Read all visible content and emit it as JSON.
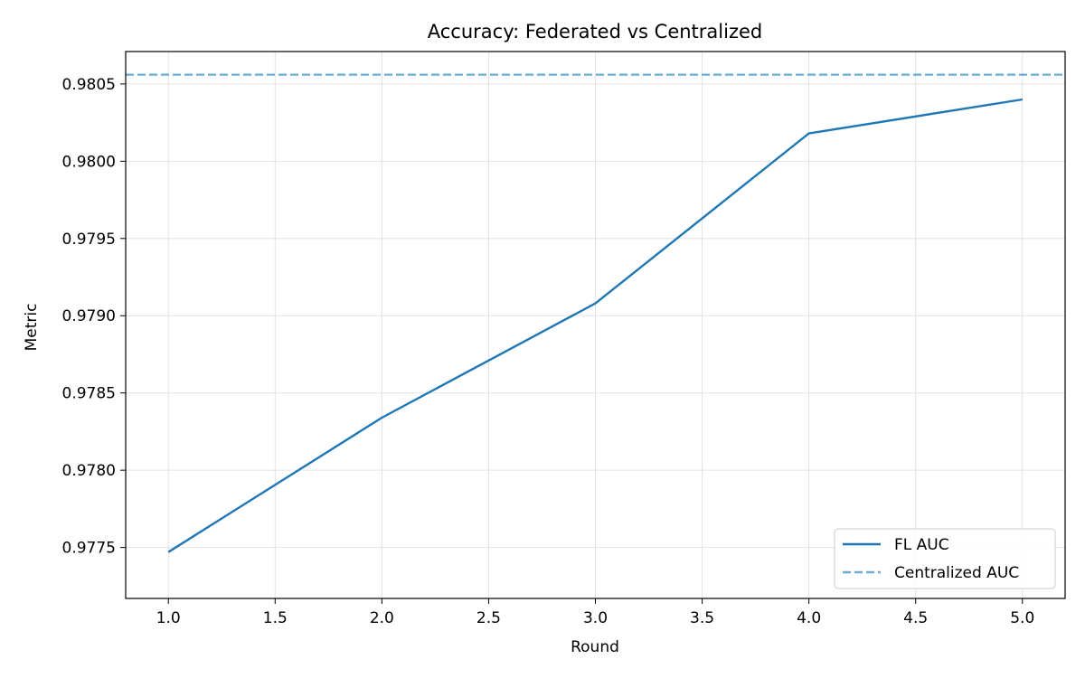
{
  "chart_data": {
    "type": "line",
    "title": "Accuracy: Federated vs Centralized",
    "xlabel": "Round",
    "ylabel": "Metric",
    "xlim": [
      0.8,
      5.2
    ],
    "ylim": [
      0.97717,
      0.98071
    ],
    "xticks": [
      1.0,
      1.5,
      2.0,
      2.5,
      3.0,
      3.5,
      4.0,
      4.5,
      5.0
    ],
    "xtick_labels": [
      "1.0",
      "1.5",
      "2.0",
      "2.5",
      "3.0",
      "3.5",
      "4.0",
      "4.5",
      "5.0"
    ],
    "yticks": [
      0.9775,
      0.978,
      0.9785,
      0.979,
      0.9795,
      0.98,
      0.9805
    ],
    "ytick_labels": [
      "0.9775",
      "0.9780",
      "0.9785",
      "0.9790",
      "0.9795",
      "0.9800",
      "0.9805"
    ],
    "grid": true,
    "legend_position": "bottom-right",
    "series": [
      {
        "name": "FL AUC",
        "style": "solid",
        "color": "#1f77b4",
        "x": [
          1,
          2,
          3,
          4,
          5
        ],
        "y": [
          0.97747,
          0.97834,
          0.97908,
          0.98018,
          0.9804
        ]
      },
      {
        "name": "Centralized AUC",
        "style": "dashed",
        "color": "#6aabd2",
        "y_constant": 0.98056
      }
    ]
  }
}
